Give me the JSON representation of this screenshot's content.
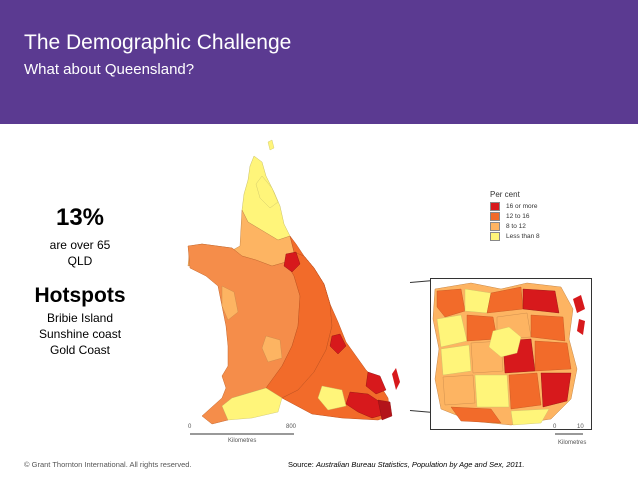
{
  "header": {
    "title": "The Demographic Challenge",
    "subtitle": "What about Queensland?",
    "background_color": "#5b3a91"
  },
  "stat": {
    "value": "13%",
    "line1": "are over 65",
    "line2": "QLD"
  },
  "hotspots": {
    "title": "Hotspots",
    "items": [
      "Bribie Island",
      "Sunshine coast",
      "Gold Coast"
    ]
  },
  "legend": {
    "title": "Per cent",
    "entries": [
      {
        "label": "16 or more",
        "color": "#d7191c"
      },
      {
        "label": "12 to 16",
        "color": "#f26b2a"
      },
      {
        "label": "8 to 12",
        "color": "#fdb462"
      },
      {
        "label": "Less than 8",
        "color": "#fff57a"
      }
    ]
  },
  "scales": {
    "main": {
      "start": "0",
      "end": "800",
      "unit": "Kilometres"
    },
    "inset": {
      "start": "0",
      "end": "10",
      "unit": "Kilometres"
    }
  },
  "footer": {
    "copyright": "© Grant Thornton International. All rights reserved.",
    "source_label": "Source:",
    "source_text": "Australian Bureau Statistics, Population by Age and Sex, 2011."
  }
}
